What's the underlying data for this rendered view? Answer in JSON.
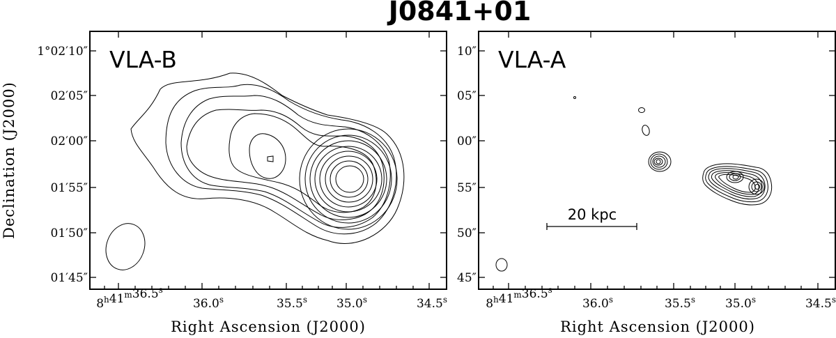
{
  "figure": {
    "title": "J0841+01"
  },
  "panels": [
    {
      "label": "VLA-B",
      "y_ticks": [
        "1°02′10″",
        "02′05″",
        "02′00″",
        "01′55″",
        "01′50″",
        "01′45″"
      ],
      "x_ticks": [
        "8h41m36.5s",
        "36.0s",
        "35.5s",
        "35.0s",
        "34.5s"
      ],
      "x_label": "Right Ascension (J2000)",
      "y_label": "Declination (J2000)"
    },
    {
      "label": "VLA-A",
      "y_ticks": [
        "10″",
        "05″",
        "00″",
        "55″",
        "50″",
        "45″"
      ],
      "x_ticks": [
        "8h41m36.5s",
        "36.0s",
        "35.5s",
        "35.0s",
        "34.5s"
      ],
      "x_label": "Right Ascension (J2000)",
      "scale_bar": "20 kpc"
    }
  ]
}
